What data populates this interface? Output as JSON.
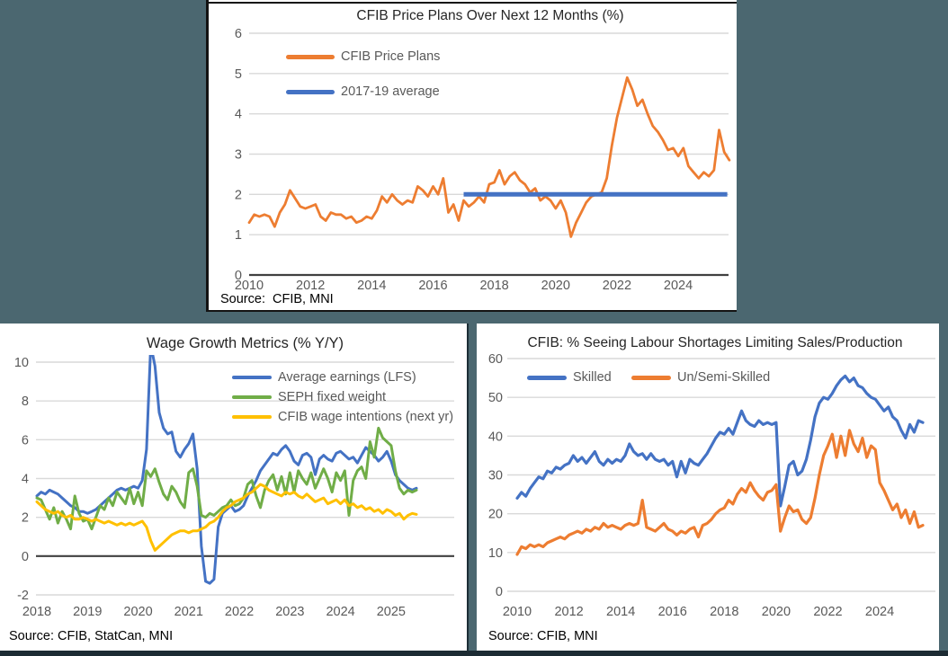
{
  "colors": {
    "background": "#4B6770",
    "panel": "#FFFFFF",
    "gridline": "#D9D9D9",
    "axis": "#404040",
    "tick_text": "#595959",
    "bottom_bar": "#1C2B33"
  },
  "chart_data": [
    {
      "type": "line",
      "title": "CFIB Price Plans Over Next 12 Months (%)",
      "source": "Source:  CFIB, MNI",
      "xlim": [
        2010,
        2025.7
      ],
      "ylim": [
        0,
        6
      ],
      "yticks": [
        0,
        1,
        2,
        3,
        4,
        5,
        6
      ],
      "xticks": [
        2010,
        2012,
        2014,
        2016,
        2018,
        2020,
        2022,
        2024
      ],
      "x_start": 2010,
      "x_step": 0.166667,
      "grid": true,
      "dark_zero": true,
      "legend_position": "inside-top-left-stacked",
      "series": [
        {
          "name": "CFIB Price Plans",
          "color": "#ED7D31",
          "values": [
            1.3,
            1.5,
            1.45,
            1.5,
            1.45,
            1.2,
            1.55,
            1.75,
            2.1,
            1.9,
            1.7,
            1.65,
            1.7,
            1.75,
            1.45,
            1.35,
            1.55,
            1.5,
            1.5,
            1.4,
            1.45,
            1.3,
            1.35,
            1.45,
            1.4,
            1.6,
            1.95,
            1.8,
            2.0,
            1.85,
            1.75,
            1.85,
            1.8,
            2.2,
            2.1,
            1.95,
            2.2,
            2.0,
            2.4,
            1.55,
            1.75,
            1.35,
            1.85,
            1.7,
            1.8,
            1.95,
            1.8,
            2.25,
            2.3,
            2.6,
            2.25,
            2.45,
            2.55,
            2.35,
            2.25,
            2.05,
            2.15,
            1.85,
            1.95,
            1.85,
            1.65,
            1.85,
            1.55,
            0.95,
            1.3,
            1.55,
            1.8,
            1.95,
            2.0,
            2.05,
            2.4,
            3.2,
            3.9,
            4.4,
            4.9,
            4.6,
            4.2,
            4.35,
            4.0,
            3.7,
            3.55,
            3.35,
            3.1,
            3.15,
            2.95,
            3.15,
            2.7,
            2.55,
            2.4,
            2.55,
            2.45,
            2.6,
            3.6,
            3.05,
            2.85
          ]
        },
        {
          "name": "2017-19 average",
          "color": "#4472C4",
          "x": [
            2017.0,
            2025.6
          ],
          "values": [
            2.0,
            2.0
          ]
        }
      ]
    },
    {
      "type": "line",
      "title": "Wage Growth Metrics (% Y/Y)",
      "source": "Source: CFIB, StatCan, MNI",
      "xlim": [
        2018,
        2025.5
      ],
      "ylim": [
        -2,
        10
      ],
      "yticks": [
        -2,
        0,
        2,
        4,
        6,
        8,
        10
      ],
      "xticks": [
        2018,
        2019,
        2020,
        2021,
        2022,
        2023,
        2024,
        2025
      ],
      "x_start": 2018,
      "x_step": 0.083333,
      "grid": true,
      "dark_zero": true,
      "legend_position": "inside-top-right-stacked",
      "series": [
        {
          "name": "Average earnings (LFS)",
          "color": "#4472C4",
          "values": [
            3.1,
            3.3,
            3.2,
            3.4,
            3.3,
            3.2,
            3.0,
            2.8,
            2.6,
            2.5,
            2.3,
            2.3,
            2.2,
            2.3,
            2.4,
            2.6,
            2.8,
            3.0,
            3.2,
            3.4,
            3.5,
            3.4,
            3.5,
            3.6,
            3.5,
            3.9,
            5.5,
            10.9,
            9.8,
            7.4,
            6.6,
            6.3,
            6.4,
            5.4,
            5.1,
            5.5,
            5.8,
            6.3,
            4.5,
            0.5,
            -1.3,
            -1.4,
            -1.2,
            1.5,
            2.2,
            2.4,
            2.6,
            2.3,
            2.4,
            2.6,
            3.1,
            3.5,
            3.9,
            4.4,
            4.7,
            5.0,
            5.3,
            5.2,
            5.5,
            5.7,
            5.4,
            4.9,
            4.7,
            5.2,
            5.3,
            5.1,
            4.2,
            5.0,
            5.2,
            5.0,
            4.9,
            5.3,
            5.4,
            5.2,
            5.0,
            5.1,
            4.8,
            5.2,
            5.6,
            5.4,
            5.2,
            4.9,
            5.1,
            5.4,
            4.9,
            4.2,
            3.9,
            3.7,
            3.5,
            3.4,
            3.5
          ]
        },
        {
          "name": "SEPH fixed weight",
          "color": "#70AD47",
          "values": [
            3.0,
            2.9,
            2.4,
            1.9,
            2.5,
            1.7,
            2.3,
            1.9,
            1.4,
            3.1,
            2.2,
            1.8,
            1.9,
            1.4,
            2.0,
            2.6,
            2.4,
            3.0,
            2.6,
            3.3,
            3.0,
            2.7,
            3.5,
            2.7,
            3.3,
            2.6,
            4.4,
            4.1,
            4.5,
            3.8,
            3.2,
            2.9,
            3.6,
            3.3,
            2.8,
            2.5,
            4.3,
            4.5,
            3.6,
            2.1,
            2.0,
            2.2,
            2.1,
            2.3,
            2.5,
            2.6,
            2.9,
            2.6,
            2.7,
            3.0,
            3.7,
            3.9,
            3.1,
            2.5,
            3.4,
            3.9,
            4.2,
            3.4,
            4.1,
            3.2,
            4.3,
            3.3,
            4.4,
            4.0,
            3.7,
            4.3,
            3.5,
            4.0,
            4.5,
            4.0,
            3.3,
            4.3,
            3.9,
            4.4,
            2.1,
            3.9,
            4.4,
            4.6,
            4.0,
            5.9,
            5.1,
            6.6,
            6.1,
            5.9,
            5.7,
            4.4,
            3.5,
            3.2,
            3.4,
            3.3,
            3.4
          ]
        },
        {
          "name": "CFIB wage intentions (next yr)",
          "color": "#FFC000",
          "values": [
            2.8,
            2.6,
            2.4,
            2.3,
            2.2,
            2.3,
            2.1,
            2.0,
            2.1,
            1.9,
            1.9,
            2.0,
            1.9,
            1.8,
            1.9,
            1.8,
            1.7,
            1.8,
            1.7,
            1.6,
            1.7,
            1.6,
            1.7,
            1.6,
            1.7,
            1.8,
            1.5,
            0.8,
            0.3,
            0.5,
            0.7,
            0.9,
            1.1,
            1.2,
            1.3,
            1.3,
            1.2,
            1.3,
            1.3,
            1.4,
            1.5,
            1.7,
            1.8,
            2.0,
            2.3,
            2.5,
            2.6,
            2.8,
            2.9,
            3.0,
            3.2,
            3.3,
            3.5,
            3.7,
            3.6,
            3.4,
            3.3,
            3.2,
            3.1,
            3.3,
            3.2,
            3.3,
            3.1,
            3.0,
            3.2,
            3.0,
            2.8,
            2.9,
            3.0,
            2.7,
            2.8,
            2.9,
            2.7,
            2.9,
            2.6,
            2.7,
            2.5,
            2.6,
            2.4,
            2.5,
            2.3,
            2.4,
            2.2,
            2.4,
            2.3,
            2.1,
            2.2,
            1.9,
            2.1,
            2.2,
            2.15
          ]
        }
      ]
    },
    {
      "type": "line",
      "title": "CFIB: % Seeing Labour Shortages Limiting Sales/Production",
      "source": "Source: CFIB, MNI",
      "xlim": [
        2010,
        2025.7
      ],
      "ylim": [
        0,
        60
      ],
      "yticks": [
        0,
        10,
        20,
        30,
        40,
        50,
        60
      ],
      "xticks": [
        2010,
        2012,
        2014,
        2016,
        2018,
        2020,
        2022,
        2024
      ],
      "x_start": 2010,
      "x_step": 0.166667,
      "grid": true,
      "dark_zero": false,
      "legend_position": "inside-top-horizontal",
      "series": [
        {
          "name": "Skilled",
          "color": "#4472C4",
          "values": [
            24,
            25.5,
            24.5,
            26.5,
            28,
            29.5,
            29,
            31,
            30.5,
            32,
            31.5,
            32.5,
            33,
            35,
            33.5,
            34.5,
            33,
            34.5,
            36,
            33.5,
            32.5,
            34,
            33,
            34,
            33.5,
            35,
            38,
            36,
            35,
            35.5,
            34,
            35.5,
            34,
            33.5,
            34,
            32.5,
            33.5,
            29.5,
            33.5,
            30.5,
            34,
            33,
            32.5,
            34,
            35.5,
            37.5,
            39.5,
            41,
            40.5,
            42,
            40.5,
            43.5,
            46.5,
            44,
            43,
            42.5,
            44,
            43,
            43.5,
            43,
            43.5,
            22,
            27,
            32.5,
            33.5,
            30,
            31,
            34,
            39,
            45,
            48.5,
            50,
            49.5,
            51,
            53,
            54.5,
            55.5,
            54,
            55,
            53,
            52.5,
            51,
            50,
            49.5,
            48,
            46.5,
            47.5,
            45,
            44,
            41.5,
            39.5,
            43,
            41,
            44,
            43.5
          ]
        },
        {
          "name": "Un/Semi-Skilled",
          "color": "#ED7D31",
          "values": [
            9.5,
            11.5,
            11,
            12,
            11.5,
            12,
            11.5,
            12.5,
            13,
            13.5,
            14,
            13.5,
            14.5,
            15,
            15.5,
            15,
            16,
            15.5,
            16.5,
            16,
            17.5,
            16.5,
            17,
            16.5,
            16,
            17,
            17.5,
            17,
            17.5,
            23.5,
            16.5,
            16,
            15.5,
            16.5,
            17.5,
            16,
            15.5,
            14.5,
            15.5,
            15,
            16,
            16.5,
            14,
            17,
            17.5,
            18.5,
            20,
            21,
            21.5,
            23.5,
            22.5,
            25,
            26.5,
            25.5,
            28,
            26,
            24.5,
            23.5,
            25.5,
            26,
            27.5,
            15.5,
            19,
            22,
            20.5,
            21,
            18.5,
            17.5,
            19,
            24,
            30,
            35,
            37.5,
            40.5,
            34.5,
            40,
            35,
            41.5,
            38,
            36,
            39.5,
            34.5,
            37.5,
            36.5,
            28,
            26,
            23.5,
            21,
            22.5,
            19,
            21,
            17.5,
            20.5,
            16.5,
            17
          ]
        }
      ]
    }
  ]
}
